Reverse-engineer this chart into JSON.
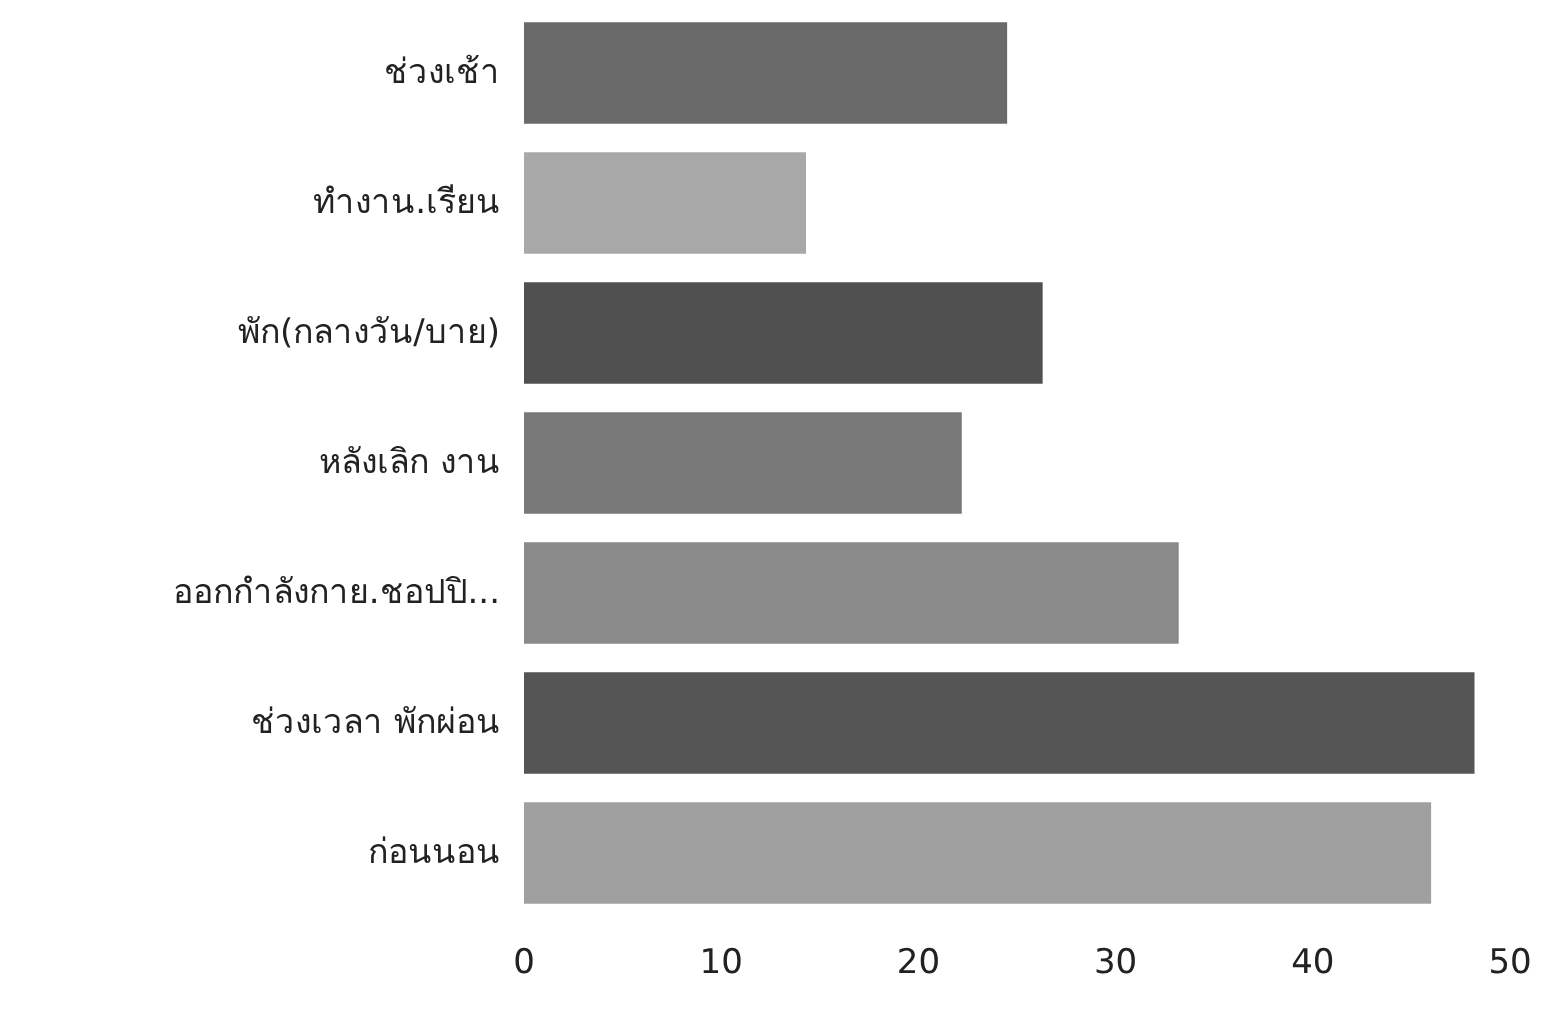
{
  "chart_data": {
    "type": "bar",
    "orientation": "horizontal",
    "categories": [
      "ช่วงเช้า",
      "ทำงาน.เรียน",
      "พัก(กลางวัน/บาย)",
      "หลังเลิก งาน",
      "ออกกำลังกาย.ชอปปิ...",
      "ช่วงเวลา พักผ่อน",
      "ก่อนนอน"
    ],
    "values": [
      24.5,
      14.3,
      26.3,
      22.2,
      33.2,
      48.2,
      46.0
    ],
    "colors": [
      "#6a6a6a",
      "#a8a8a8",
      "#505050",
      "#787878",
      "#8a8a8a",
      "#555555",
      "#a0a0a0"
    ],
    "xlim": [
      0,
      50
    ],
    "xticks": [
      0,
      10,
      20,
      30,
      40,
      50
    ]
  }
}
